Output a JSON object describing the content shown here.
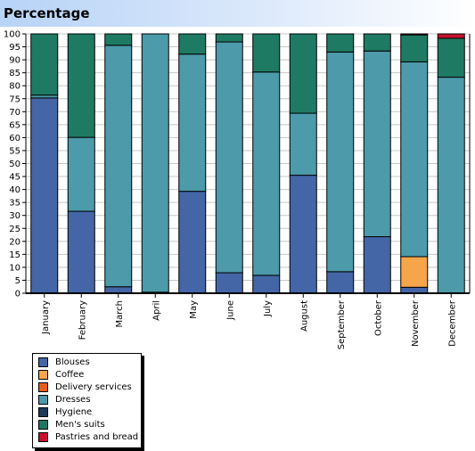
{
  "header": {
    "title": "Percentage"
  },
  "chart_data": {
    "type": "bar",
    "stacked": true,
    "percent": true,
    "title": "Percentage",
    "xlabel": "",
    "ylabel": "",
    "ylim": [
      0,
      100
    ],
    "yticks": [
      0,
      5,
      10,
      15,
      20,
      25,
      30,
      35,
      40,
      45,
      50,
      55,
      60,
      65,
      70,
      75,
      80,
      85,
      90,
      95,
      100
    ],
    "grid": true,
    "legend_position": "bottom-left",
    "categories": [
      "January",
      "February",
      "March",
      "April",
      "May",
      "June",
      "July",
      "August",
      "September",
      "October",
      "November",
      "December"
    ],
    "series": [
      {
        "name": "Blouses",
        "color": "#4466a6",
        "values": [
          75.3,
          31.6,
          2.5,
          0.4,
          39.3,
          7.9,
          6.9,
          45.5,
          8.3,
          21.8,
          2.3,
          0
        ]
      },
      {
        "name": "Coffee",
        "color": "#f6a64a",
        "values": [
          0,
          0,
          0,
          0,
          0,
          0,
          0,
          0,
          0,
          0,
          11.8,
          0
        ]
      },
      {
        "name": "Delivery services",
        "color": "#e65c1a",
        "values": [
          0,
          0,
          0,
          0,
          0,
          0,
          0,
          0,
          0,
          0,
          0,
          0
        ]
      },
      {
        "name": "Dresses",
        "color": "#4c9aaa",
        "values": [
          1.1,
          28.5,
          93.1,
          99.6,
          52.9,
          89.0,
          78.4,
          23.9,
          84.7,
          71.6,
          75.1,
          83.3
        ]
      },
      {
        "name": "Hygiene",
        "color": "#1d3a5a",
        "values": [
          0,
          0,
          0,
          0,
          0,
          0,
          0,
          0,
          0,
          0,
          0,
          0
        ]
      },
      {
        "name": "Men's suits",
        "color": "#1f7a63",
        "values": [
          23.6,
          39.9,
          4.4,
          0,
          7.8,
          3.1,
          14.7,
          30.6,
          7.0,
          6.6,
          10.4,
          15.0
        ]
      },
      {
        "name": "Pastries and bread",
        "color": "#c8102e",
        "values": [
          0,
          0,
          0,
          0,
          0,
          0,
          0,
          0,
          0,
          0,
          0.4,
          1.7
        ]
      }
    ]
  }
}
